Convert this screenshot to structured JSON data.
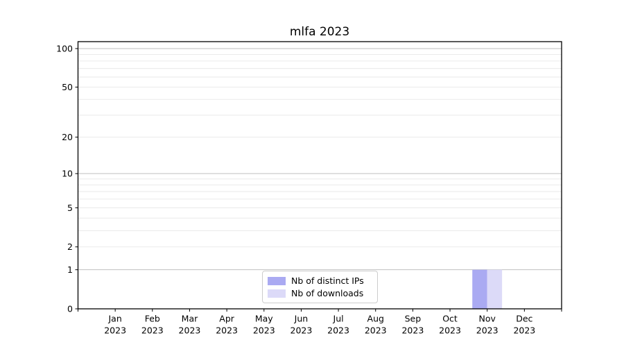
{
  "chart_data": {
    "type": "bar",
    "title": "mlfa 2023",
    "categories": [
      "Jan 2023",
      "Feb 2023",
      "Mar 2023",
      "Apr 2023",
      "May 2023",
      "Jun 2023",
      "Jul 2023",
      "Aug 2023",
      "Sep 2023",
      "Oct 2023",
      "Nov 2023",
      "Dec 2023"
    ],
    "series": [
      {
        "name": "Nb of distinct IPs",
        "color": "#aaaaf2",
        "values": [
          0,
          0,
          0,
          0,
          0,
          0,
          0,
          0,
          0,
          0,
          1,
          0
        ]
      },
      {
        "name": "Nb of downloads",
        "color": "#dcdaf8",
        "values": [
          0,
          0,
          0,
          0,
          0,
          0,
          0,
          0,
          0,
          0,
          1,
          0
        ]
      }
    ],
    "xlabel": "",
    "ylabel": "",
    "y_axis": {
      "scale": "log1p",
      "tick_values": [
        0,
        1,
        2,
        5,
        10,
        20,
        50,
        100
      ],
      "major_grid_values": [
        1,
        10,
        100
      ],
      "minor_grid_values": [
        2,
        3,
        4,
        5,
        6,
        7,
        8,
        9,
        20,
        30,
        40,
        50,
        60,
        70,
        80,
        90
      ],
      "ylim": [
        0,
        113.2
      ]
    },
    "grid": true,
    "legend_position": "lower center inside plot",
    "colors": {
      "major_grid": "#bfbfbf",
      "minor_grid": "#eaeaea",
      "spine": "#000000",
      "tick_text": "#000000"
    }
  }
}
